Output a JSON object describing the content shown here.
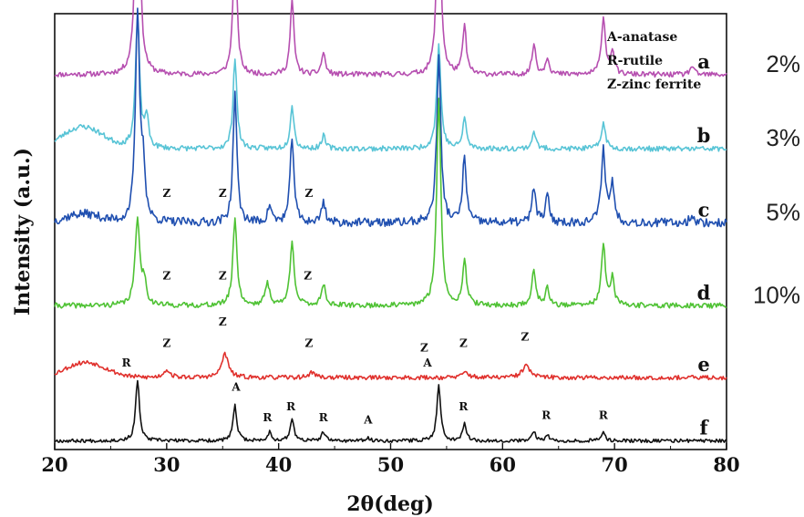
{
  "chart_data": {
    "type": "line",
    "xlabel": "2θ(deg)",
    "ylabel": "Intensity (a.u.)",
    "xlim": [
      20,
      80
    ],
    "xticks": [
      20,
      30,
      40,
      50,
      60,
      70,
      80
    ],
    "yticks": "none",
    "grid": false,
    "legend": {
      "placement": "top-right",
      "entries": [
        "A-anatase",
        "R-rutile",
        "Z-zinc ferrite"
      ]
    },
    "series": [
      {
        "name": "a",
        "percent": "2%",
        "color": "#b64fb0",
        "offset": 0.86,
        "noise": 0.006,
        "seed": 11,
        "hump": [],
        "peaks": [
          [
            27.4,
            0.62,
            0.22
          ],
          [
            36.1,
            0.33,
            0.2
          ],
          [
            41.2,
            0.17,
            0.2
          ],
          [
            44.0,
            0.05,
            0.2
          ],
          [
            54.3,
            0.44,
            0.22
          ],
          [
            56.6,
            0.11,
            0.2
          ],
          [
            62.8,
            0.07,
            0.2
          ],
          [
            64.0,
            0.04,
            0.2
          ],
          [
            69.0,
            0.13,
            0.22
          ],
          [
            69.8,
            0.05,
            0.2
          ],
          [
            76.9,
            0.02,
            0.2
          ]
        ],
        "z_marks": []
      },
      {
        "name": "b",
        "percent": "3%",
        "color": "#58c4d6",
        "offset": 0.69,
        "noise": 0.006,
        "seed": 23,
        "hump": [
          22.5,
          0.05,
          1.8
        ],
        "peaks": [
          [
            27.4,
            0.3,
            0.22
          ],
          [
            28.2,
            0.07,
            0.2
          ],
          [
            36.1,
            0.21,
            0.2
          ],
          [
            41.2,
            0.1,
            0.2
          ],
          [
            44.0,
            0.03,
            0.2
          ],
          [
            54.3,
            0.24,
            0.22
          ],
          [
            56.6,
            0.07,
            0.2
          ],
          [
            62.8,
            0.04,
            0.2
          ],
          [
            69.0,
            0.06,
            0.22
          ]
        ],
        "z_marks": []
      },
      {
        "name": "c",
        "percent": "5%",
        "color": "#1f4fb0",
        "offset": 0.52,
        "noise": 0.01,
        "seed": 37,
        "hump": [
          22.5,
          0.02,
          1.5
        ],
        "peaks": [
          [
            27.4,
            0.48,
            0.22
          ],
          [
            27.9,
            0.12,
            0.2
          ],
          [
            36.1,
            0.3,
            0.2
          ],
          [
            39.2,
            0.04,
            0.2
          ],
          [
            41.2,
            0.2,
            0.2
          ],
          [
            44.0,
            0.05,
            0.2
          ],
          [
            54.3,
            0.38,
            0.22
          ],
          [
            56.6,
            0.15,
            0.2
          ],
          [
            62.8,
            0.08,
            0.2
          ],
          [
            64.0,
            0.06,
            0.2
          ],
          [
            69.0,
            0.17,
            0.22
          ],
          [
            69.8,
            0.09,
            0.2
          ],
          [
            76.9,
            0.02,
            0.2
          ]
        ],
        "z_marks": [
          [
            30.0,
            0.58
          ],
          [
            35.0,
            0.58
          ],
          [
            42.7,
            0.58
          ]
        ]
      },
      {
        "name": "d",
        "percent": "10%",
        "color": "#4fc234",
        "offset": 0.33,
        "noise": 0.006,
        "seed": 41,
        "hump": [],
        "peaks": [
          [
            27.4,
            0.2,
            0.25
          ],
          [
            28.0,
            0.05,
            0.2
          ],
          [
            36.1,
            0.2,
            0.22
          ],
          [
            39.0,
            0.05,
            0.25
          ],
          [
            41.2,
            0.15,
            0.22
          ],
          [
            44.0,
            0.05,
            0.22
          ],
          [
            54.3,
            0.48,
            0.22
          ],
          [
            56.6,
            0.1,
            0.22
          ],
          [
            62.8,
            0.08,
            0.22
          ],
          [
            64.0,
            0.04,
            0.2
          ],
          [
            69.0,
            0.14,
            0.22
          ],
          [
            69.8,
            0.06,
            0.2
          ]
        ],
        "z_marks": [
          [
            30.0,
            0.39
          ],
          [
            35.0,
            0.39
          ],
          [
            42.6,
            0.39
          ]
        ]
      },
      {
        "name": "e",
        "percent": "",
        "color": "#e0302c",
        "offset": 0.165,
        "noise": 0.005,
        "seed": 53,
        "hump": [
          22.8,
          0.035,
          1.8
        ],
        "peaks": [
          [
            30.0,
            0.018,
            0.35
          ],
          [
            35.2,
            0.055,
            0.35
          ],
          [
            43.0,
            0.012,
            0.35
          ],
          [
            56.7,
            0.012,
            0.35
          ],
          [
            62.1,
            0.028,
            0.4
          ]
        ],
        "z_marks": [
          [
            30.0,
            0.235
          ],
          [
            35.0,
            0.285
          ],
          [
            42.7,
            0.235
          ],
          [
            53.0,
            0.225
          ],
          [
            56.5,
            0.235
          ],
          [
            62.0,
            0.25
          ]
        ]
      },
      {
        "name": "f",
        "percent": "",
        "color": "#111111",
        "offset": 0.02,
        "noise": 0.004,
        "seed": 67,
        "hump": [],
        "peaks": [
          [
            27.4,
            0.14,
            0.2
          ],
          [
            36.1,
            0.08,
            0.2
          ],
          [
            39.2,
            0.02,
            0.2
          ],
          [
            41.2,
            0.05,
            0.2
          ],
          [
            44.0,
            0.02,
            0.2
          ],
          [
            48.0,
            0.006,
            0.2
          ],
          [
            54.3,
            0.13,
            0.2
          ],
          [
            56.6,
            0.04,
            0.2
          ],
          [
            62.8,
            0.02,
            0.2
          ],
          [
            64.0,
            0.012,
            0.2
          ],
          [
            69.0,
            0.02,
            0.2
          ]
        ],
        "z_marks": []
      }
    ],
    "phase_marks_f": [
      {
        "text": "R",
        "x": 26.4,
        "y": 0.19
      },
      {
        "text": "A",
        "x": 36.2,
        "y": 0.135
      },
      {
        "text": "R",
        "x": 39.0,
        "y": 0.065
      },
      {
        "text": "R",
        "x": 41.1,
        "y": 0.09
      },
      {
        "text": "R",
        "x": 44.0,
        "y": 0.065
      },
      {
        "text": "A",
        "x": 48.0,
        "y": 0.06
      },
      {
        "text": "A",
        "x": 53.3,
        "y": 0.19
      },
      {
        "text": "R",
        "x": 56.5,
        "y": 0.09
      },
      {
        "text": "R",
        "x": 63.9,
        "y": 0.07
      },
      {
        "text": "R",
        "x": 69.0,
        "y": 0.07
      }
    ],
    "z_text": "Z"
  }
}
